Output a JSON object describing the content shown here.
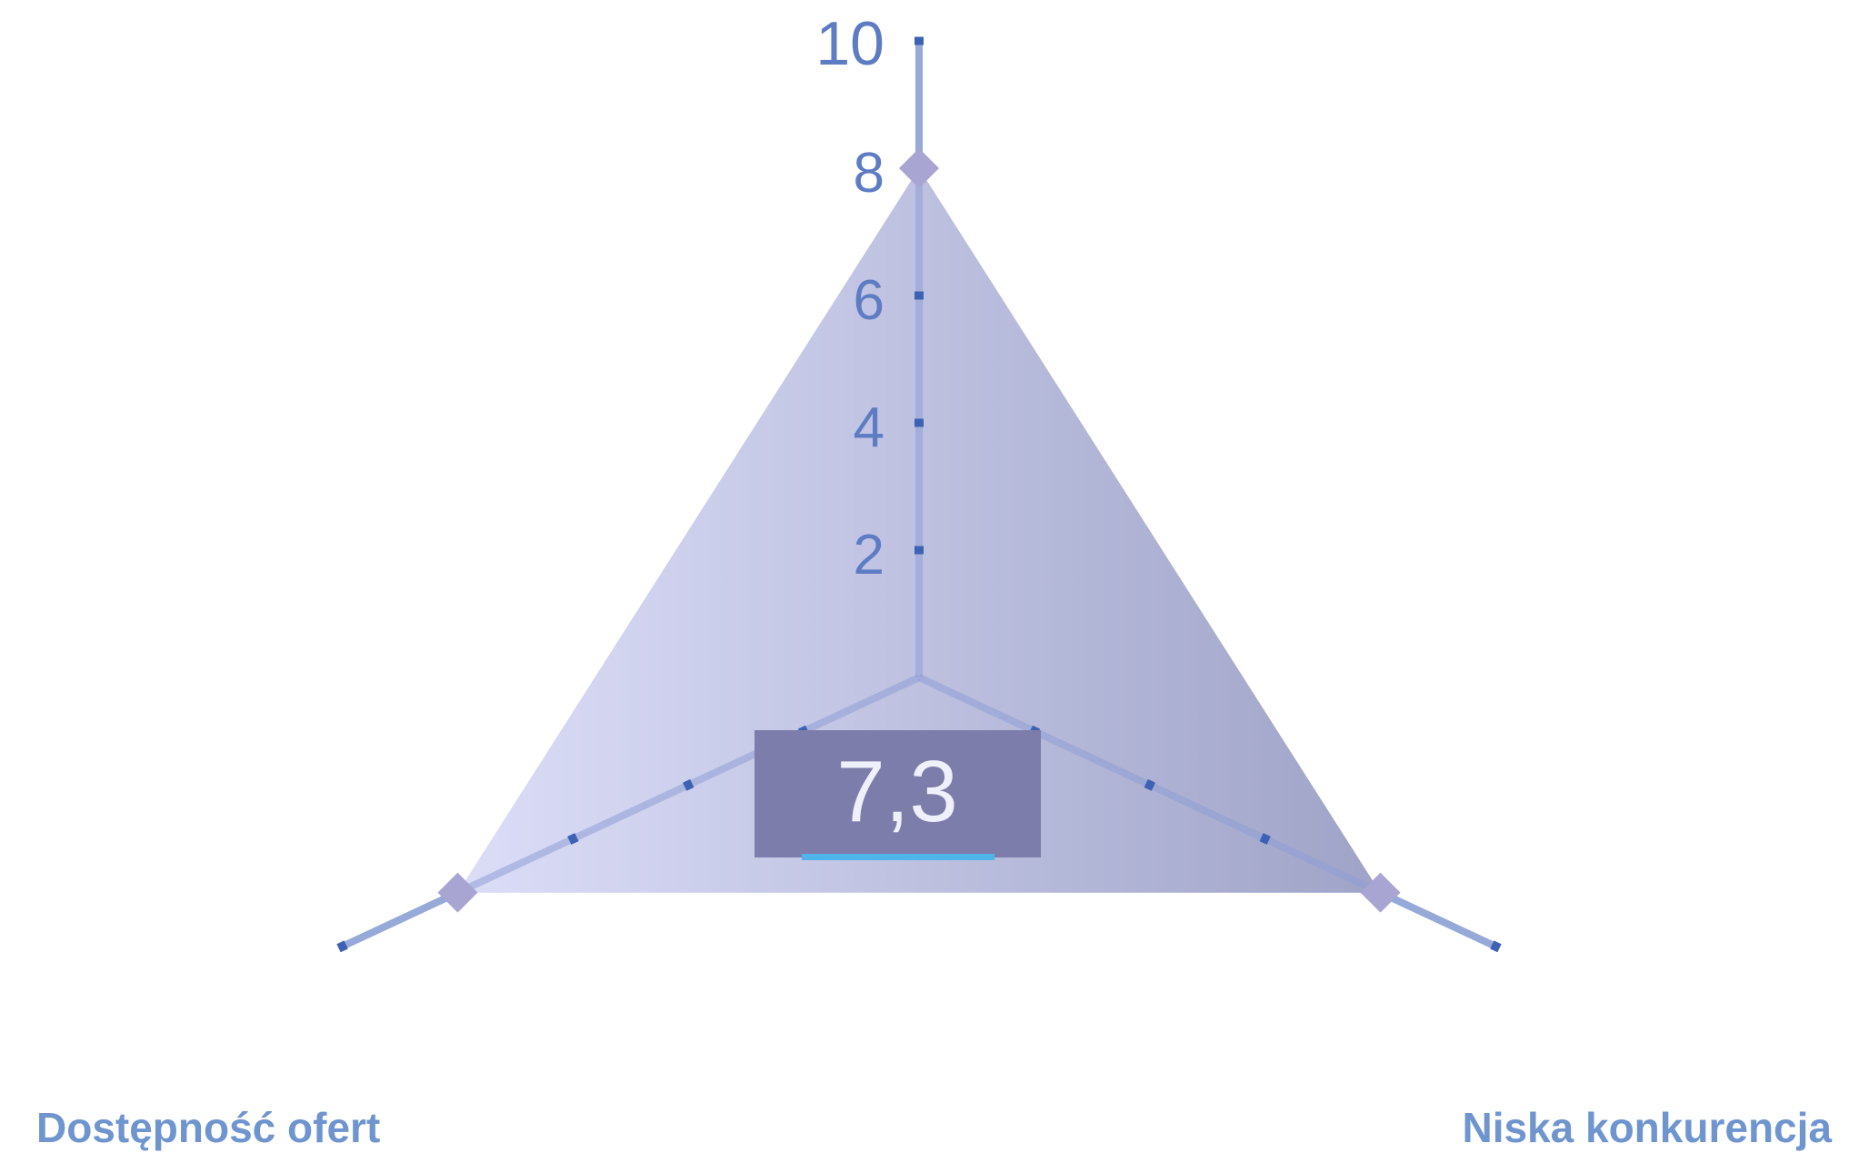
{
  "chart_data": {
    "type": "radar",
    "axes": [
      "",
      "Dostępność ofert",
      "Niska konkurencja"
    ],
    "tick_labels": [
      "2",
      "4",
      "6",
      "8",
      "10"
    ],
    "ylim": [
      0,
      10
    ],
    "values": [
      8,
      8,
      8
    ],
    "score": "7,3",
    "grid": false,
    "legend": "none"
  },
  "colors": {
    "axis_line": "#9fb6de",
    "tick_mark": "#3d62b3",
    "tick_text": "#5d7cc3",
    "axis_name": "#6f95cf",
    "area_light": "#dcdef8",
    "area_dark": "#9fa3c7",
    "marker": "#a9a5d3",
    "score_box": "#7d7dab",
    "score_underline": "#4fb4ea",
    "score_text": "#eef0fa"
  }
}
